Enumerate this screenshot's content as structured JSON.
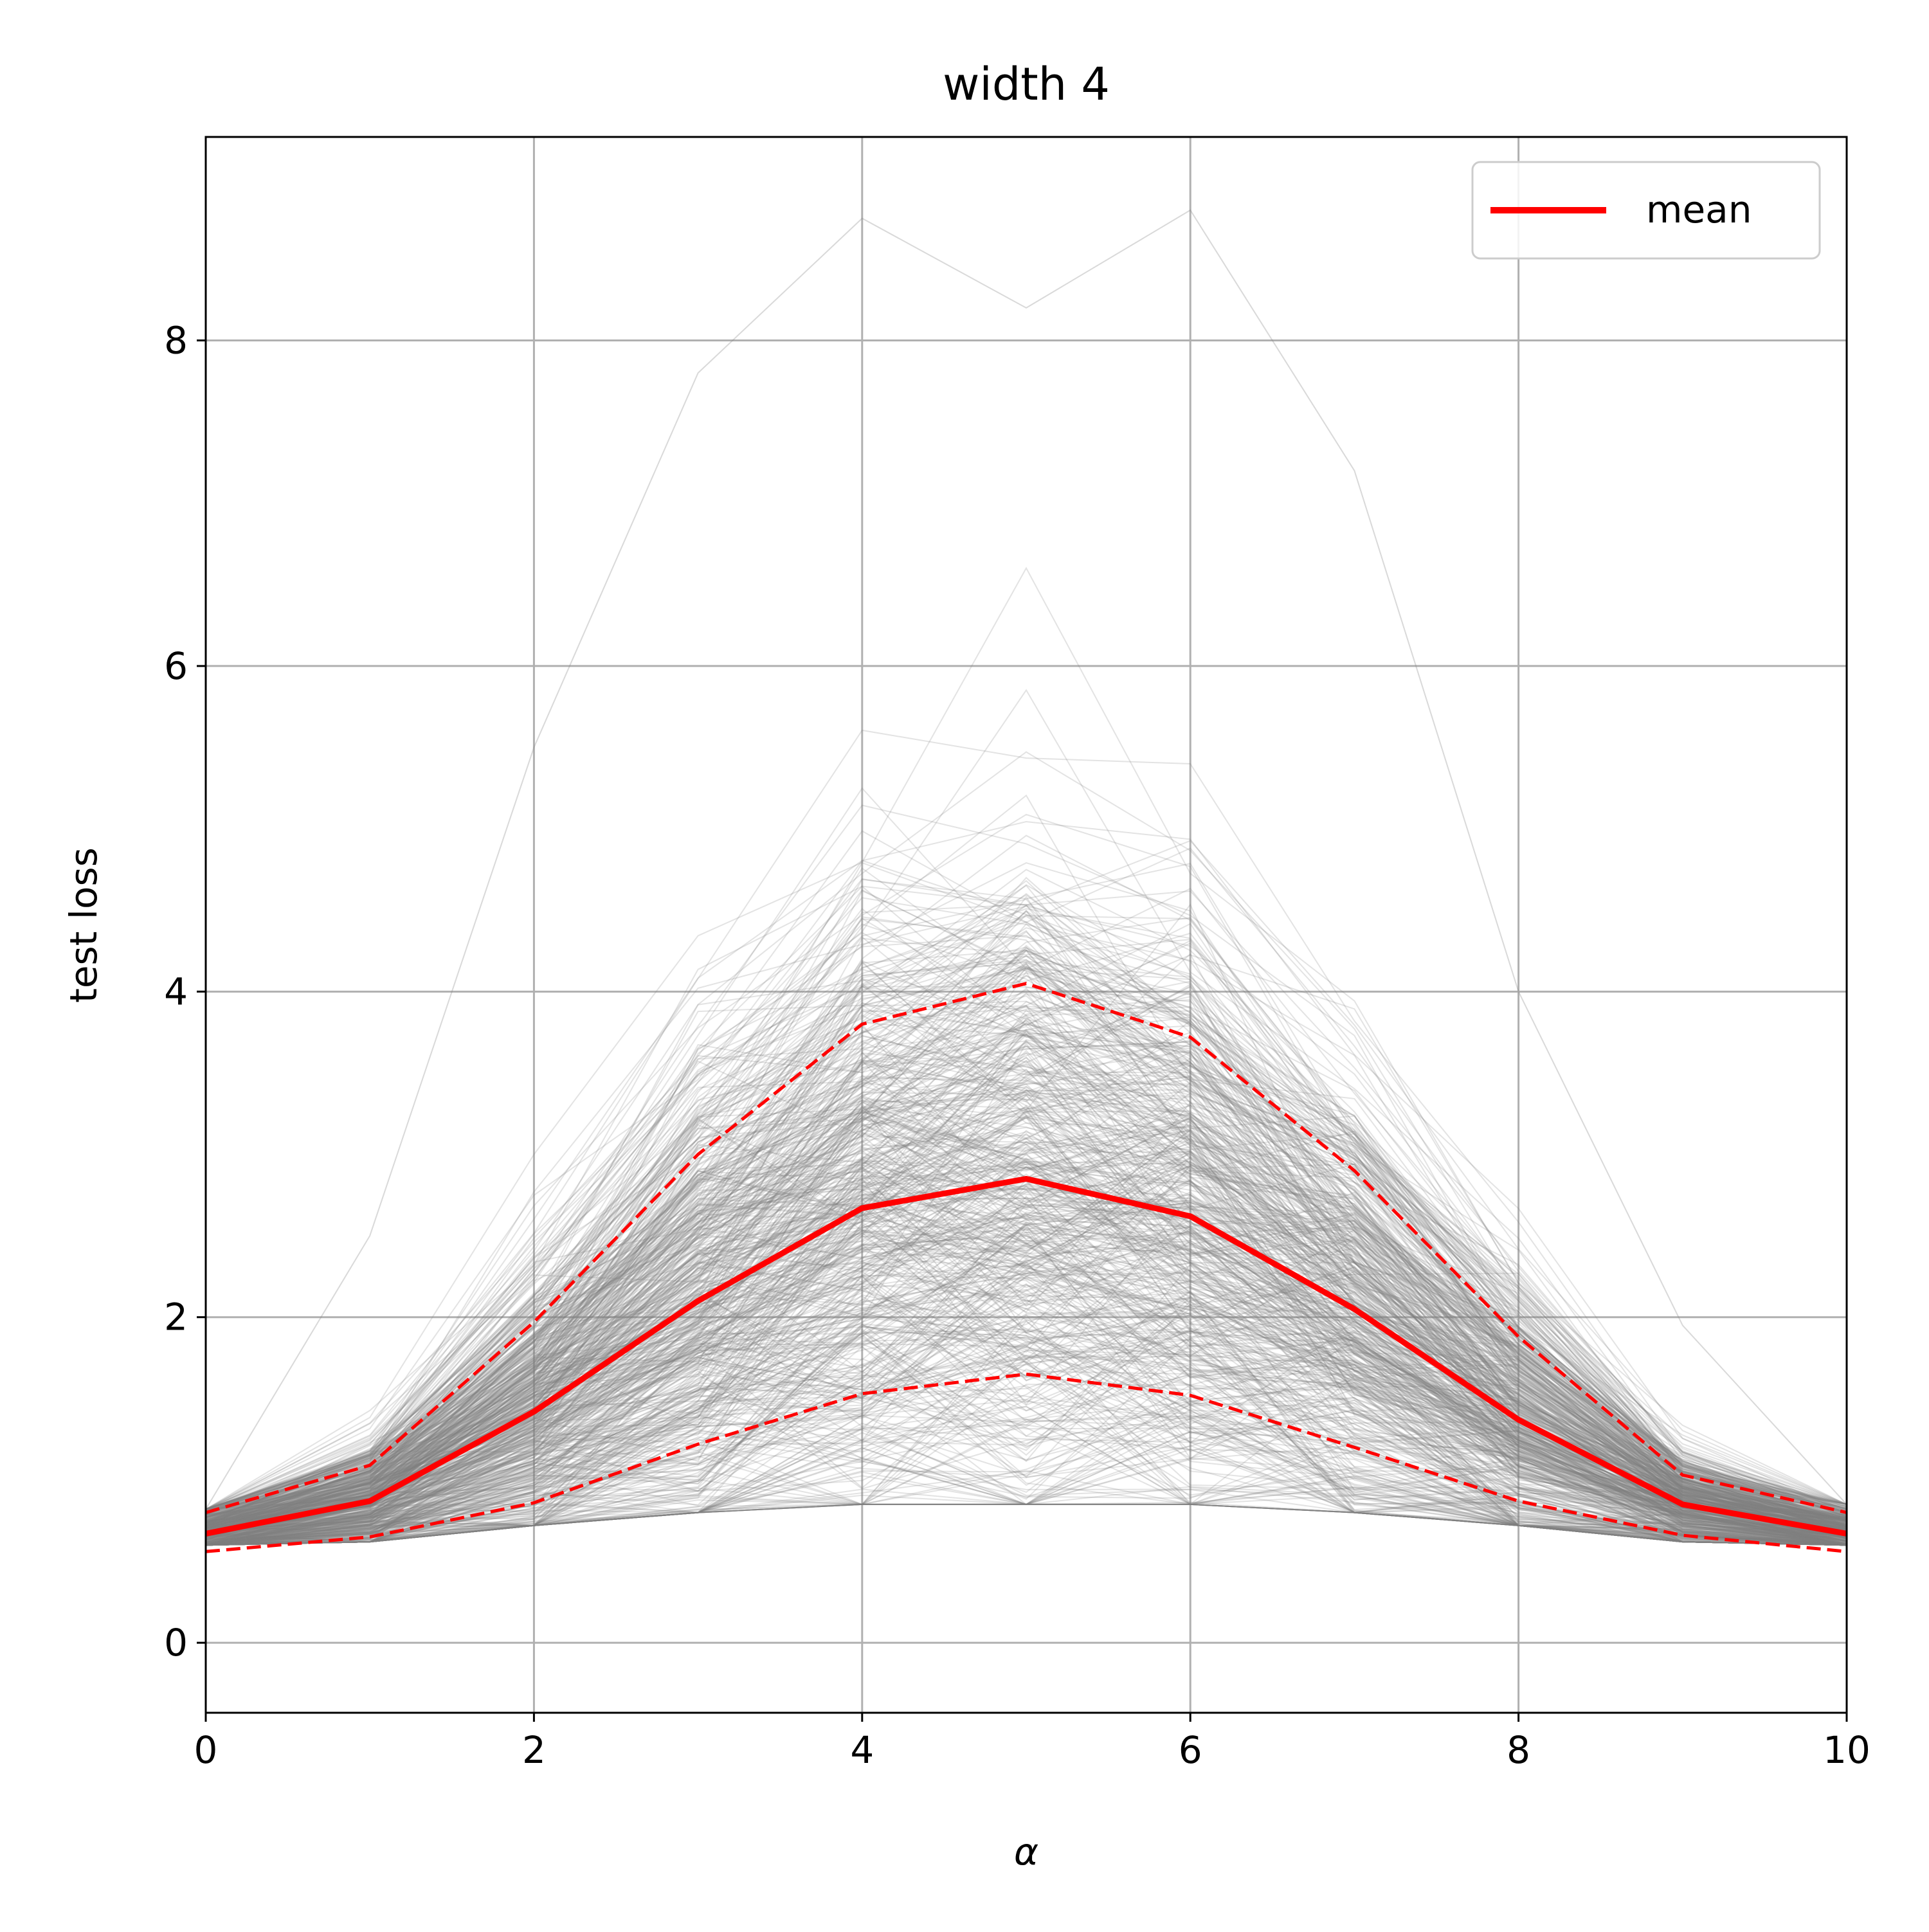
{
  "chart_data": {
    "type": "line",
    "title": "width 4",
    "xlabel": "α",
    "ylabel": "test loss",
    "xlim": [
      0,
      10
    ],
    "ylim": [
      -0.43,
      9.25
    ],
    "x_ticks": [
      "0",
      "2",
      "4",
      "6",
      "8",
      "10"
    ],
    "y_ticks": [
      "0",
      "2",
      "4",
      "6",
      "8"
    ],
    "grid": true,
    "legend": {
      "placement": "top-right",
      "entries": [
        "mean"
      ]
    },
    "colors": {
      "mean": "#ff0000",
      "band": "#ff0000",
      "runs": "#808080",
      "grid": "#b0b0b0"
    },
    "x": [
      0,
      1,
      2,
      3,
      4,
      5,
      6,
      7,
      8,
      9,
      10
    ],
    "series": [
      {
        "name": "mean",
        "style": "solid",
        "values": [
          0.67,
          0.87,
          1.42,
          2.1,
          2.67,
          2.85,
          2.62,
          2.05,
          1.37,
          0.85,
          0.67
        ]
      },
      {
        "style": "dashed",
        "values": [
          0.8,
          1.09,
          1.97,
          3.0,
          3.8,
          4.05,
          3.72,
          2.9,
          1.88,
          1.03,
          0.8
        ]
      },
      {
        "style": "dashed",
        "values": [
          0.56,
          0.65,
          0.86,
          1.22,
          1.53,
          1.65,
          1.52,
          1.2,
          0.87,
          0.66,
          0.56
        ]
      }
    ],
    "background_runs": {
      "count": 600,
      "color": "gray",
      "envelope_max": [
        0.82,
        2.5,
        5.5,
        7.8,
        8.75,
        8.2,
        8.8,
        7.2,
        4.0,
        1.95,
        0.85
      ],
      "envelope_min": [
        0.6,
        0.62,
        0.72,
        0.8,
        0.85,
        0.85,
        0.85,
        0.8,
        0.72,
        0.62,
        0.6
      ]
    }
  }
}
